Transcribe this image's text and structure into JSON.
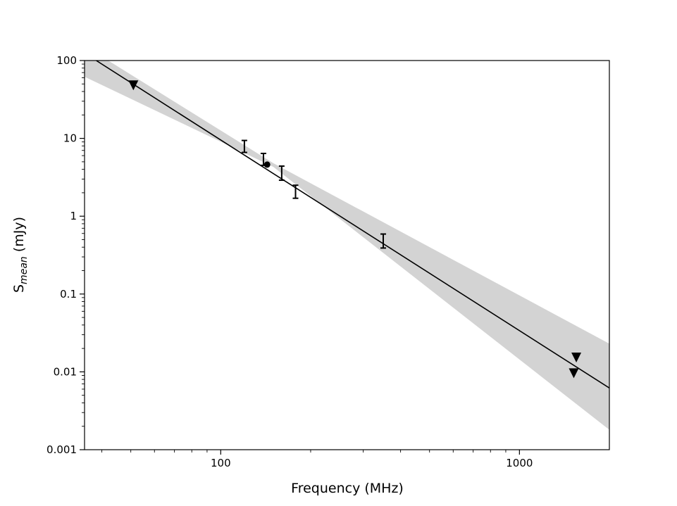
{
  "chart_data": {
    "type": "scatter",
    "title": "",
    "xlabel": "Frequency (MHz)",
    "ylabel_main": "S",
    "ylabel_sub": "mean",
    "ylabel_unit": " (mJy)",
    "xscale": "log",
    "yscale": "log",
    "xlim": [
      35,
      2000
    ],
    "ylim": [
      0.001,
      100
    ],
    "x_ticks": [
      {
        "value": 100,
        "label": "100"
      },
      {
        "value": 1000,
        "label": "1000"
      }
    ],
    "y_ticks": [
      {
        "value": 0.001,
        "label": "0.001"
      },
      {
        "value": 0.01,
        "label": "0.01"
      },
      {
        "value": 0.1,
        "label": "0.1"
      },
      {
        "value": 1,
        "label": "1"
      },
      {
        "value": 10,
        "label": "10"
      },
      {
        "value": 100,
        "label": "100"
      }
    ],
    "grid": false,
    "legend": "none",
    "fit_line": {
      "points": [
        [
          38.3,
          100
        ],
        [
          2000,
          0.0062
        ]
      ],
      "color": "#000000"
    },
    "confidence_band": {
      "upper": [
        [
          35,
          100
        ],
        [
          42,
          100
        ],
        [
          150,
          4.8
        ],
        [
          2000,
          0.023
        ]
      ],
      "lower": [
        [
          35,
          62
        ],
        [
          150,
          4.3
        ],
        [
          2000,
          0.0018
        ]
      ],
      "color": "#d3d3d3"
    },
    "error_bars": [
      {
        "x": 120,
        "y": 8.0,
        "ylow": 6.6,
        "yhigh": 9.4
      },
      {
        "x": 139,
        "y": 5.4,
        "ylow": 4.5,
        "yhigh": 6.4
      },
      {
        "x": 160,
        "y": 3.6,
        "ylow": 2.9,
        "yhigh": 4.4
      },
      {
        "x": 178,
        "y": 2.1,
        "ylow": 1.7,
        "yhigh": 2.5
      },
      {
        "x": 350,
        "y": 0.49,
        "ylow": 0.39,
        "yhigh": 0.59
      }
    ],
    "points": [
      {
        "x": 143,
        "y": 4.6
      }
    ],
    "upper_limits": [
      {
        "x": 51,
        "y": 48
      },
      {
        "x": 1520,
        "y": 0.0096
      },
      {
        "x": 1550,
        "y": 0.0153
      }
    ]
  }
}
